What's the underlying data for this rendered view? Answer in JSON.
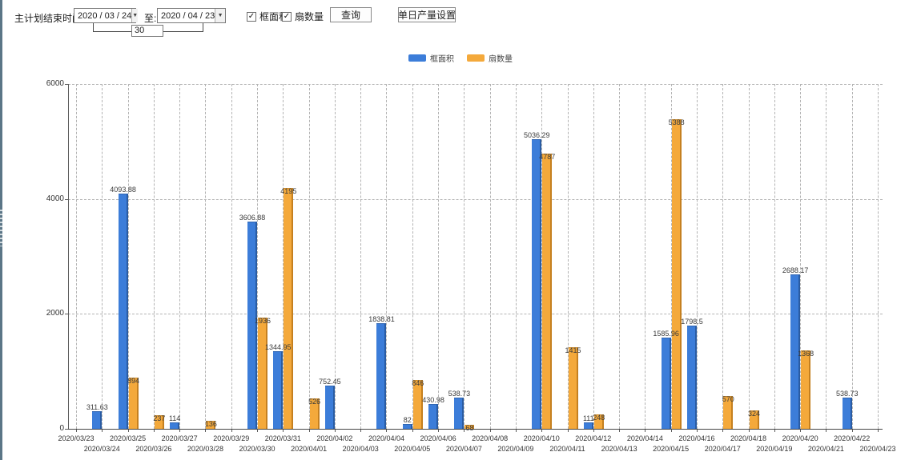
{
  "toolbar": {
    "end_time_label": "主计划结束时间:",
    "date_from": "2020 / 03 / 24",
    "to_label": "至:",
    "date_to": "2020 / 04 / 23",
    "days_value": "30",
    "checkbox_area_label": "框面积",
    "checkbox_fan_label": "扇数量",
    "checkbox_checked_glyph": "✓",
    "dropdown_glyph": "▼",
    "query_button": "查询",
    "daily_output_button": "单日产量设置"
  },
  "legend": {
    "series1_label": "框面积",
    "series2_label": "扇数量"
  },
  "colors": {
    "series1_blue": "#3c7dd9",
    "series2_orange": "#f4a93b"
  },
  "chart_data": {
    "type": "bar",
    "title": "",
    "xlabel": "",
    "ylabel": "",
    "ylim": [
      0,
      6000
    ],
    "yticks": [
      0,
      2000,
      4000,
      6000
    ],
    "grid": true,
    "legend_position": "top",
    "categories": [
      "2020/03/23",
      "2020/03/24",
      "2020/03/25",
      "2020/03/26",
      "2020/03/27",
      "2020/03/28",
      "2020/03/29",
      "2020/03/30",
      "2020/03/31",
      "2020/04/01",
      "2020/04/02",
      "2020/04/03",
      "2020/04/04",
      "2020/04/05",
      "2020/04/06",
      "2020/04/07",
      "2020/04/08",
      "2020/04/09",
      "2020/04/10",
      "2020/04/11",
      "2020/04/12",
      "2020/04/13",
      "2020/04/14",
      "2020/04/15",
      "2020/04/16",
      "2020/04/17",
      "2020/04/18",
      "2020/04/19",
      "2020/04/20",
      "2020/04/21",
      "2020/04/22",
      "2020/04/23"
    ],
    "series": [
      {
        "name": "框面积",
        "color": "#3c7dd9",
        "values": [
          null,
          311.63,
          4093.88,
          null,
          114,
          null,
          null,
          3606.88,
          1344.95,
          null,
          752.45,
          null,
          1838.81,
          82,
          430.98,
          538.73,
          null,
          null,
          5036.29,
          null,
          111,
          null,
          null,
          1585.96,
          1798.5,
          null,
          null,
          null,
          2688.17,
          null,
          538.73,
          null
        ]
      },
      {
        "name": "扇数量",
        "color": "#f4a93b",
        "values": [
          null,
          null,
          894,
          237,
          null,
          136,
          null,
          1936,
          4195,
          526,
          null,
          null,
          null,
          846,
          null,
          68,
          null,
          null,
          4787,
          1415,
          248,
          null,
          null,
          5388,
          null,
          570,
          324,
          null,
          1368,
          null,
          null,
          null
        ]
      }
    ]
  }
}
